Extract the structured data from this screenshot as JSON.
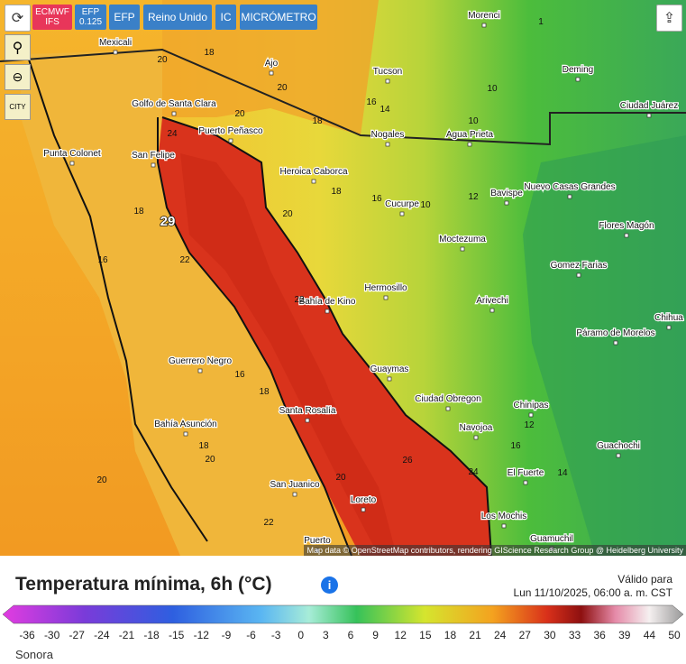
{
  "toolbar": {
    "buttons": [
      "ECMWF IFS",
      "EFP 0.125",
      "EFP",
      "Reino Unido",
      "IC",
      "MICRÓMETRO"
    ]
  },
  "side_buttons": [
    "CITY"
  ],
  "map": {
    "cities": [
      "Morenci",
      "Mexicali",
      "Tucson",
      "Deming",
      "Ajo",
      "Golfo de Santa Clara",
      "Puerto Peñasco",
      "Nogales",
      "Agua Prieta",
      "Ciudad Juárez",
      "Punta Colonet",
      "San Felipe",
      "Heroica Caborca",
      "Bavispe",
      "Nuevo Casas Grandes",
      "Cucurpe",
      "Flores Magón",
      "Moctezuma",
      "Gomez Farias",
      "Hermosillo",
      "Bahía de Kino",
      "Arivechi",
      "Chihua",
      "Páramo de Morelos",
      "Guerrero Negro",
      "Guaymas",
      "Ciudad Obregon",
      "Chinipas",
      "Santa Rosalía",
      "Navojoa",
      "Guachochi",
      "Bahía Asunción",
      "El Fuerte",
      "San Juanico",
      "Loreto",
      "Los Mochis",
      "Guamuchil",
      "Puerto"
    ],
    "values": [
      18,
      20,
      20,
      16,
      14,
      10,
      10,
      20,
      18,
      24,
      18,
      16,
      10,
      12,
      20,
      18,
      29,
      22,
      16,
      22,
      16,
      18,
      12,
      16,
      18,
      20,
      20,
      20,
      24,
      26,
      14,
      22,
      1
    ],
    "attribution": "Map data © OpenStreetMap contributors, rendering GIScience Research Group @ Heidelberg University"
  },
  "legend": {
    "title": "Temperatura mínima, 6h (°C)",
    "valid_label": "Válido para",
    "valid_time": "Lun 11/10/2025, 06:00 a. m. CST",
    "scale_ticks": [
      -36,
      -30,
      -27,
      -24,
      -21,
      -18,
      -15,
      -12,
      -9,
      -6,
      -3,
      0,
      3,
      6,
      9,
      12,
      15,
      18,
      21,
      24,
      27,
      30,
      33,
      36,
      39,
      44,
      50
    ]
  },
  "region": "Sonora"
}
